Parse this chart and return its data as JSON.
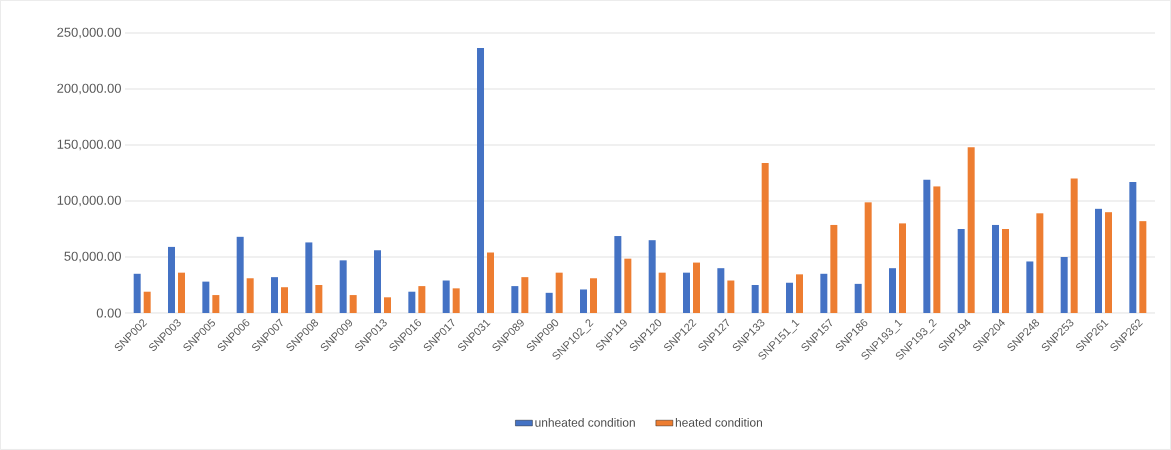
{
  "chart_data": {
    "type": "bar",
    "categories": [
      "SNP002",
      "SNP003",
      "SNP005",
      "SNP006",
      "SNP007",
      "SNP008",
      "SNP009",
      "SNP013",
      "SNP016",
      "SNP017",
      "SNP031",
      "SNP089",
      "SNP090",
      "SNP102_2",
      "SNP119",
      "SNP120",
      "SNP122",
      "SNP127",
      "SNP133",
      "SNP151_1",
      "SNP157",
      "SNP186",
      "SNP193_1",
      "SNP193_2",
      "SNP194",
      "SNP204",
      "SNP248",
      "SNP253",
      "SNP261",
      "SNP262"
    ],
    "series": [
      {
        "name": "unheated condition",
        "color": "#4472c4",
        "values": [
          35000,
          59000,
          28000,
          68000,
          32000,
          63000,
          47000,
          56000,
          19000,
          29000,
          236600,
          24000,
          18000,
          21000,
          68700,
          65000,
          36000,
          40000,
          25000,
          27000,
          35000,
          26000,
          40000,
          119000,
          75000,
          78600,
          46000,
          50000,
          93000,
          117000
        ]
      },
      {
        "name": "heated condition",
        "color": "#ed7d31",
        "values": [
          19000,
          36000,
          16000,
          31000,
          23000,
          25000,
          16000,
          14000,
          24000,
          22000,
          54000,
          32000,
          36000,
          31000,
          48500,
          36000,
          45000,
          29000,
          134000,
          34500,
          78600,
          98800,
          80000,
          113000,
          148000,
          75000,
          89000,
          120000,
          90000,
          82000
        ]
      }
    ],
    "ylim": [
      0,
      250000
    ],
    "yticks": [
      {
        "value": 0,
        "label": "0.00"
      },
      {
        "value": 50000,
        "label": "50,000.00"
      },
      {
        "value": 100000,
        "label": "100,000.00"
      },
      {
        "value": 150000,
        "label": "150,000.00"
      },
      {
        "value": 200000,
        "label": "200,000.00"
      },
      {
        "value": 250000,
        "label": "250,000.00"
      }
    ],
    "grid": "y",
    "legend": "bottom"
  }
}
